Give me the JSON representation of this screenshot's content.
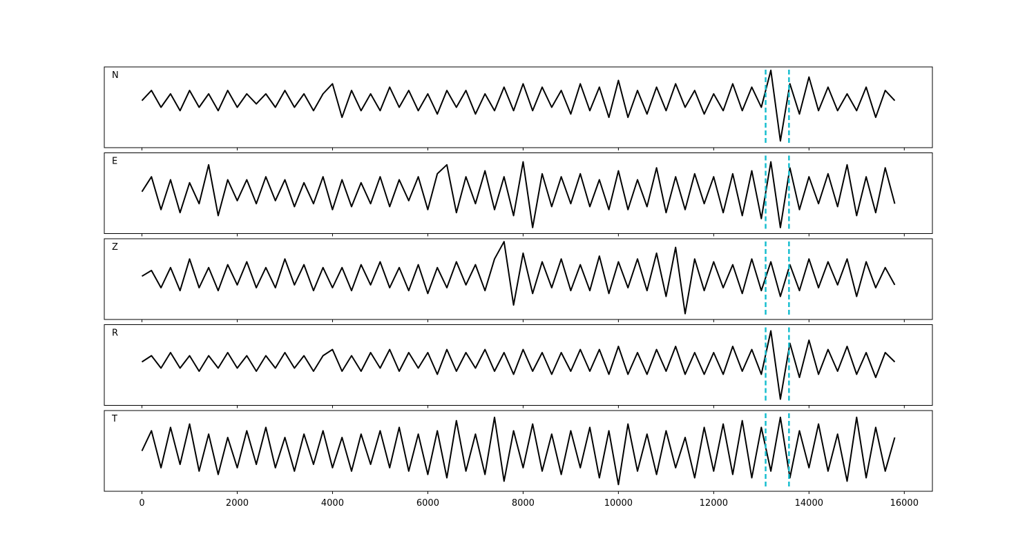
{
  "chart_data": {
    "type": "line",
    "layout": "stacked",
    "x": [
      0,
      200,
      400,
      600,
      800,
      1000,
      1200,
      1400,
      1600,
      1800,
      2000,
      2200,
      2400,
      2600,
      2800,
      3000,
      3200,
      3400,
      3600,
      3800,
      4000,
      4200,
      4400,
      4600,
      4800,
      5000,
      5200,
      5400,
      5600,
      5800,
      6000,
      6200,
      6400,
      6600,
      6800,
      7000,
      7200,
      7400,
      7600,
      7800,
      8000,
      8200,
      8400,
      8600,
      8800,
      9000,
      9200,
      9400,
      9600,
      9800,
      10000,
      10200,
      10400,
      10600,
      10800,
      11000,
      11200,
      11400,
      11600,
      11800,
      12000,
      12200,
      12400,
      12600,
      12800,
      13000,
      13200,
      13400,
      13600,
      13800,
      14000,
      14200,
      14400,
      14600,
      14800,
      15000,
      15200,
      15400,
      15600,
      15800
    ],
    "xlim": [
      -790,
      16590
    ],
    "xticks": [
      0,
      2000,
      4000,
      6000,
      8000,
      10000,
      12000,
      14000,
      16000
    ],
    "vlines": [
      13090,
      13580
    ],
    "vline_color": "#17becf",
    "series": [
      {
        "name": "N",
        "color": "#000000",
        "ylim": [
          -14,
          10
        ],
        "values": [
          0,
          3,
          -2,
          2,
          -3,
          3,
          -2,
          2,
          -3,
          3,
          -2,
          2,
          -1,
          2,
          -2,
          3,
          -2,
          2,
          -3,
          2,
          5,
          -5,
          3,
          -3,
          2,
          -3,
          4,
          -2,
          3,
          -3,
          2,
          -4,
          3,
          -2,
          3,
          -4,
          2,
          -3,
          4,
          -3,
          5,
          -3,
          4,
          -2,
          3,
          -4,
          5,
          -3,
          4,
          -5,
          6,
          -5,
          3,
          -4,
          4,
          -3,
          5,
          -2,
          3,
          -4,
          2,
          -3,
          5,
          -3,
          4,
          -2,
          9,
          -12,
          5,
          -4,
          7,
          -3,
          4,
          -3,
          2,
          -3,
          4,
          -5,
          3,
          0
        ]
      },
      {
        "name": "E",
        "color": "#000000",
        "ylim": [
          -14,
          13
        ],
        "values": [
          0,
          5,
          -6,
          4,
          -7,
          3,
          -4,
          9,
          -8,
          4,
          -3,
          4,
          -4,
          5,
          -3,
          4,
          -5,
          3,
          -4,
          5,
          -6,
          4,
          -5,
          3,
          -4,
          5,
          -5,
          4,
          -3,
          5,
          -6,
          6,
          9,
          -7,
          5,
          -4,
          7,
          -6,
          5,
          -8,
          10,
          -12,
          6,
          -5,
          5,
          -4,
          6,
          -5,
          4,
          -6,
          7,
          -6,
          4,
          -5,
          8,
          -7,
          5,
          -6,
          6,
          -4,
          5,
          -7,
          6,
          -8,
          7,
          -9,
          10,
          -12,
          8,
          -6,
          5,
          -4,
          6,
          -5,
          9,
          -8,
          5,
          -7,
          8,
          -4
        ]
      },
      {
        "name": "Z",
        "color": "#000000",
        "ylim": [
          -15,
          13
        ],
        "values": [
          0,
          2,
          -4,
          3,
          -5,
          6,
          -4,
          3,
          -5,
          4,
          -3,
          5,
          -4,
          3,
          -4,
          6,
          -3,
          4,
          -5,
          3,
          -4,
          3,
          -5,
          4,
          -3,
          5,
          -4,
          3,
          -5,
          4,
          -6,
          3,
          -4,
          5,
          -3,
          4,
          -5,
          6,
          12,
          -10,
          8,
          -6,
          5,
          -4,
          6,
          -5,
          4,
          -5,
          7,
          -6,
          5,
          -4,
          6,
          -5,
          8,
          -7,
          10,
          -13,
          6,
          -5,
          5,
          -4,
          4,
          -6,
          6,
          -5,
          5,
          -7,
          4,
          -5,
          6,
          -4,
          5,
          -3,
          6,
          -7,
          5,
          -4,
          3,
          -3
        ]
      },
      {
        "name": "R",
        "color": "#000000",
        "ylim": [
          -14,
          12
        ],
        "values": [
          0,
          2,
          -2,
          3,
          -2,
          2,
          -3,
          2,
          -2,
          3,
          -2,
          2,
          -3,
          2,
          -2,
          3,
          -2,
          2,
          -3,
          2,
          4,
          -3,
          2,
          -3,
          3,
          -2,
          4,
          -3,
          3,
          -2,
          3,
          -4,
          4,
          -3,
          3,
          -2,
          4,
          -3,
          3,
          -4,
          4,
          -3,
          3,
          -4,
          3,
          -3,
          4,
          -3,
          4,
          -4,
          5,
          -4,
          3,
          -4,
          4,
          -3,
          5,
          -4,
          3,
          -4,
          3,
          -4,
          5,
          -3,
          4,
          -4,
          10,
          -12,
          6,
          -5,
          7,
          -4,
          4,
          -3,
          5,
          -4,
          3,
          -5,
          3,
          0
        ]
      },
      {
        "name": "T",
        "color": "#000000",
        "ylim": [
          -12,
          12
        ],
        "values": [
          0,
          6,
          -5,
          7,
          -4,
          8,
          -6,
          5,
          -7,
          4,
          -5,
          6,
          -4,
          7,
          -5,
          4,
          -6,
          5,
          -4,
          6,
          -5,
          4,
          -6,
          5,
          -4,
          6,
          -5,
          7,
          -6,
          5,
          -7,
          6,
          -8,
          9,
          -6,
          5,
          -7,
          10,
          -9,
          6,
          -5,
          8,
          -6,
          5,
          -7,
          6,
          -5,
          7,
          -8,
          6,
          -10,
          8,
          -6,
          5,
          -7,
          6,
          -5,
          4,
          -8,
          7,
          -6,
          8,
          -7,
          9,
          -8,
          7,
          -6,
          10,
          -8,
          6,
          -5,
          8,
          -6,
          5,
          -9,
          10,
          -8,
          7,
          -6,
          4
        ]
      }
    ]
  }
}
